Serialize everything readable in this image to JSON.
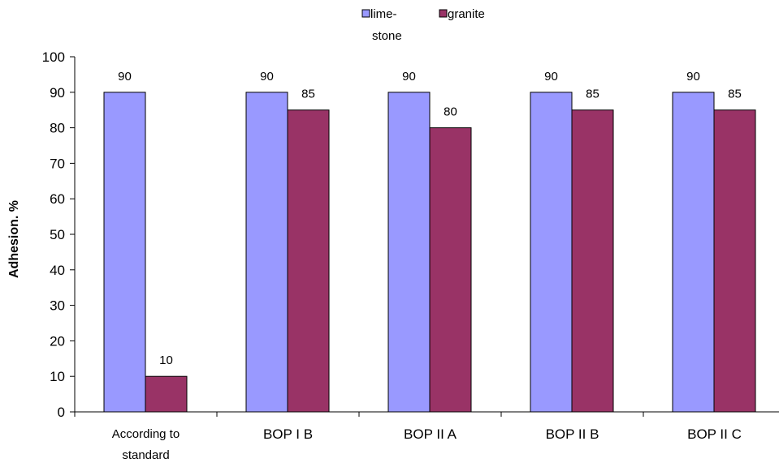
{
  "chart_data": {
    "type": "bar",
    "categories": [
      "According to standard",
      "BOP I B",
      "BOP II A",
      "BOP II B",
      "BOP II C"
    ],
    "series": [
      {
        "name": "lime-stone",
        "values": [
          90,
          90,
          90,
          90,
          90
        ],
        "color": "#9999ff"
      },
      {
        "name": "granite",
        "values": [
          10,
          85,
          80,
          85,
          85
        ],
        "color": "#993366"
      }
    ],
    "title": "",
    "xlabel": "",
    "ylabel": "Adhesion. %",
    "ylim": [
      0,
      100
    ],
    "yticks": [
      0,
      10,
      20,
      30,
      40,
      50,
      60,
      70,
      80,
      90,
      100
    ],
    "grid": false,
    "legend_position": "top-center",
    "data_labels": true
  }
}
